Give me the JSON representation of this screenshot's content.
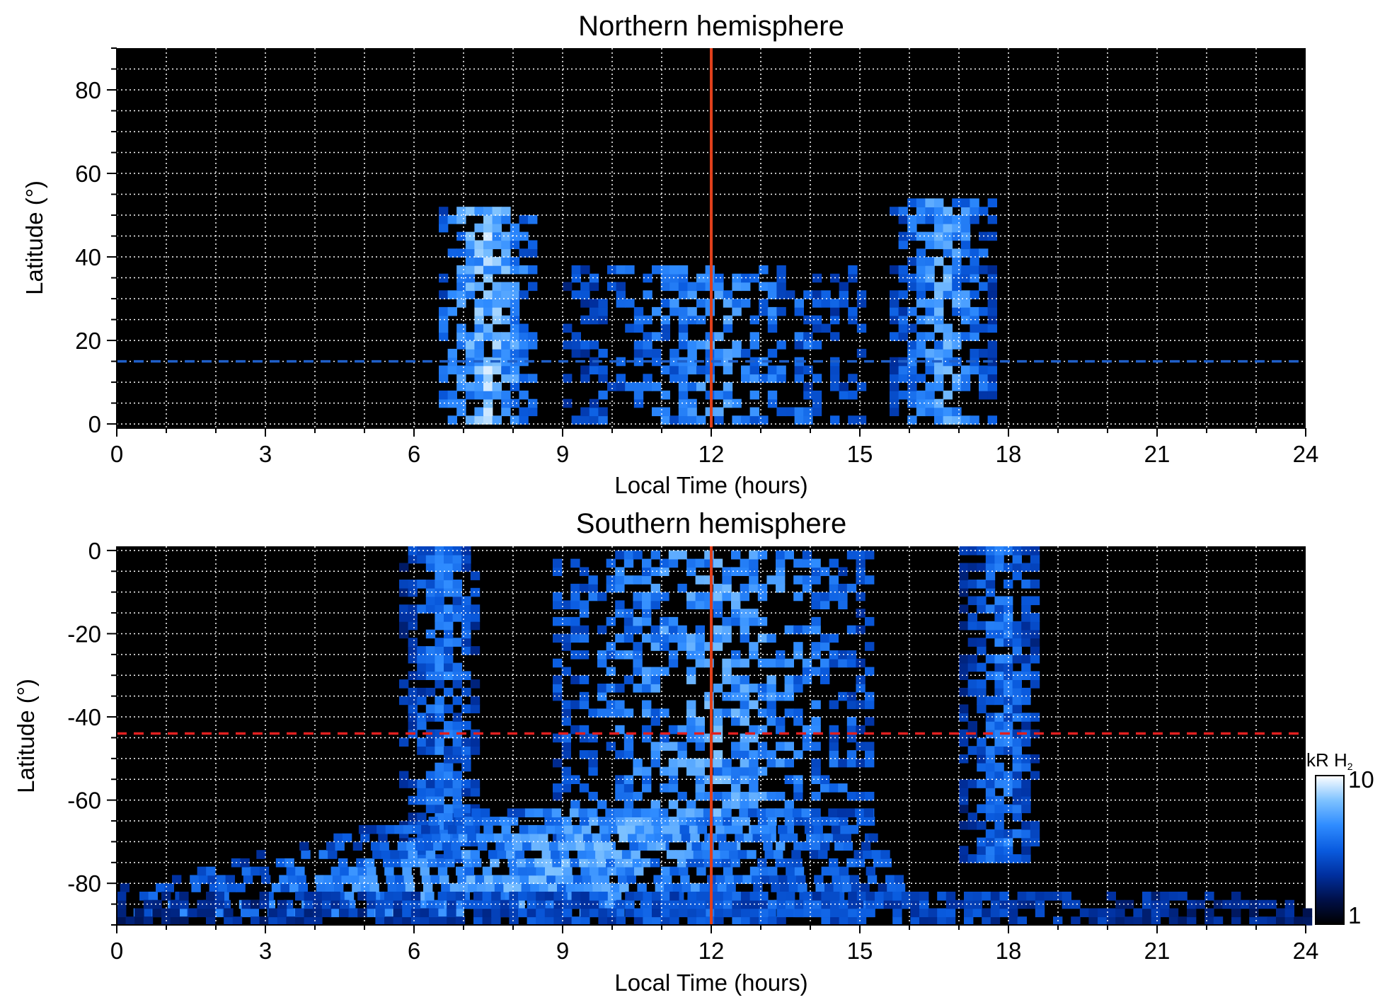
{
  "chart_data": [
    {
      "type": "heatmap",
      "title": "Northern hemisphere",
      "xlabel": "Local Time (hours)",
      "ylabel": "Latitude (°)",
      "xlim": [
        0,
        24
      ],
      "ylim": [
        -1,
        90
      ],
      "xticks": [
        "0",
        "3",
        "6",
        "9",
        "12",
        "15",
        "18",
        "21",
        "24"
      ],
      "yticks": [
        "0",
        "20",
        "40",
        "60",
        "80"
      ],
      "grid": true,
      "background": "#000000",
      "reference_lines": [
        {
          "orientation": "vertical",
          "x": 12,
          "style": "solid",
          "color": "#e0401c"
        },
        {
          "orientation": "horizontal",
          "y": 15,
          "style": "dashed",
          "color": "#1f5fc8"
        }
      ],
      "emission_regions": [
        {
          "name": "dawn arc",
          "lt_center": 7.4,
          "lt_halfwidth": 0.9,
          "lat_min": 0,
          "lat_max": 52,
          "intensity": 9.0
        },
        {
          "name": "noon patches",
          "lt_center": 12.0,
          "lt_halfwidth": 3.0,
          "lat_min": 0,
          "lat_max": 38,
          "intensity": 6.0
        },
        {
          "name": "dusk arc",
          "lt_center": 16.6,
          "lt_halfwidth": 1.0,
          "lat_min": 0,
          "lat_max": 53,
          "intensity": 7.0
        }
      ]
    },
    {
      "type": "heatmap",
      "title": "Southern hemisphere",
      "xlabel": "Local Time (hours)",
      "ylabel": "Latitude (°)",
      "xlim": [
        0,
        24
      ],
      "ylim": [
        -90,
        1
      ],
      "xticks": [
        "0",
        "3",
        "6",
        "9",
        "12",
        "15",
        "18",
        "21",
        "24"
      ],
      "yticks": [
        "0",
        "-20",
        "-40",
        "-60",
        "-80"
      ],
      "grid": true,
      "background": "#000000",
      "reference_lines": [
        {
          "orientation": "vertical",
          "x": 12,
          "style": "solid",
          "color": "#e0401c"
        },
        {
          "orientation": "horizontal",
          "y": -44,
          "style": "dashed",
          "color": "#e02020"
        }
      ],
      "emission_regions": [
        {
          "name": "dawn arc",
          "lt_center": 6.5,
          "lt_halfwidth": 0.8,
          "lat_min": -75,
          "lat_max": 0,
          "intensity": 5.0
        },
        {
          "name": "noon patches",
          "lt_center": 12.0,
          "lt_halfwidth": 3.2,
          "lat_min": -72,
          "lat_max": 0,
          "intensity": 7.0
        },
        {
          "name": "dusk arc",
          "lt_center": 17.8,
          "lt_halfwidth": 0.8,
          "lat_min": -75,
          "lat_max": 0,
          "intensity": 5.0
        },
        {
          "name": "polar oval",
          "lt_center": 9.0,
          "lt_halfwidth": 9.0,
          "lat_min": -88,
          "lat_max": -62,
          "intensity": 7.0
        },
        {
          "name": "polar cap edge",
          "lt_center": 12.0,
          "lt_halfwidth": 12.0,
          "lat_min": -90,
          "lat_max": -82,
          "intensity": 4.0
        }
      ]
    }
  ],
  "colorbar": {
    "label_main": "kR H",
    "label_sub": "2",
    "max_label": "10",
    "min_label": "1",
    "scale": "log",
    "range": [
      1,
      10
    ],
    "colors": [
      "#000000",
      "#00104a",
      "#0030a0",
      "#0a5ce0",
      "#2f8cff",
      "#7ec2ff",
      "#ffffff"
    ]
  }
}
